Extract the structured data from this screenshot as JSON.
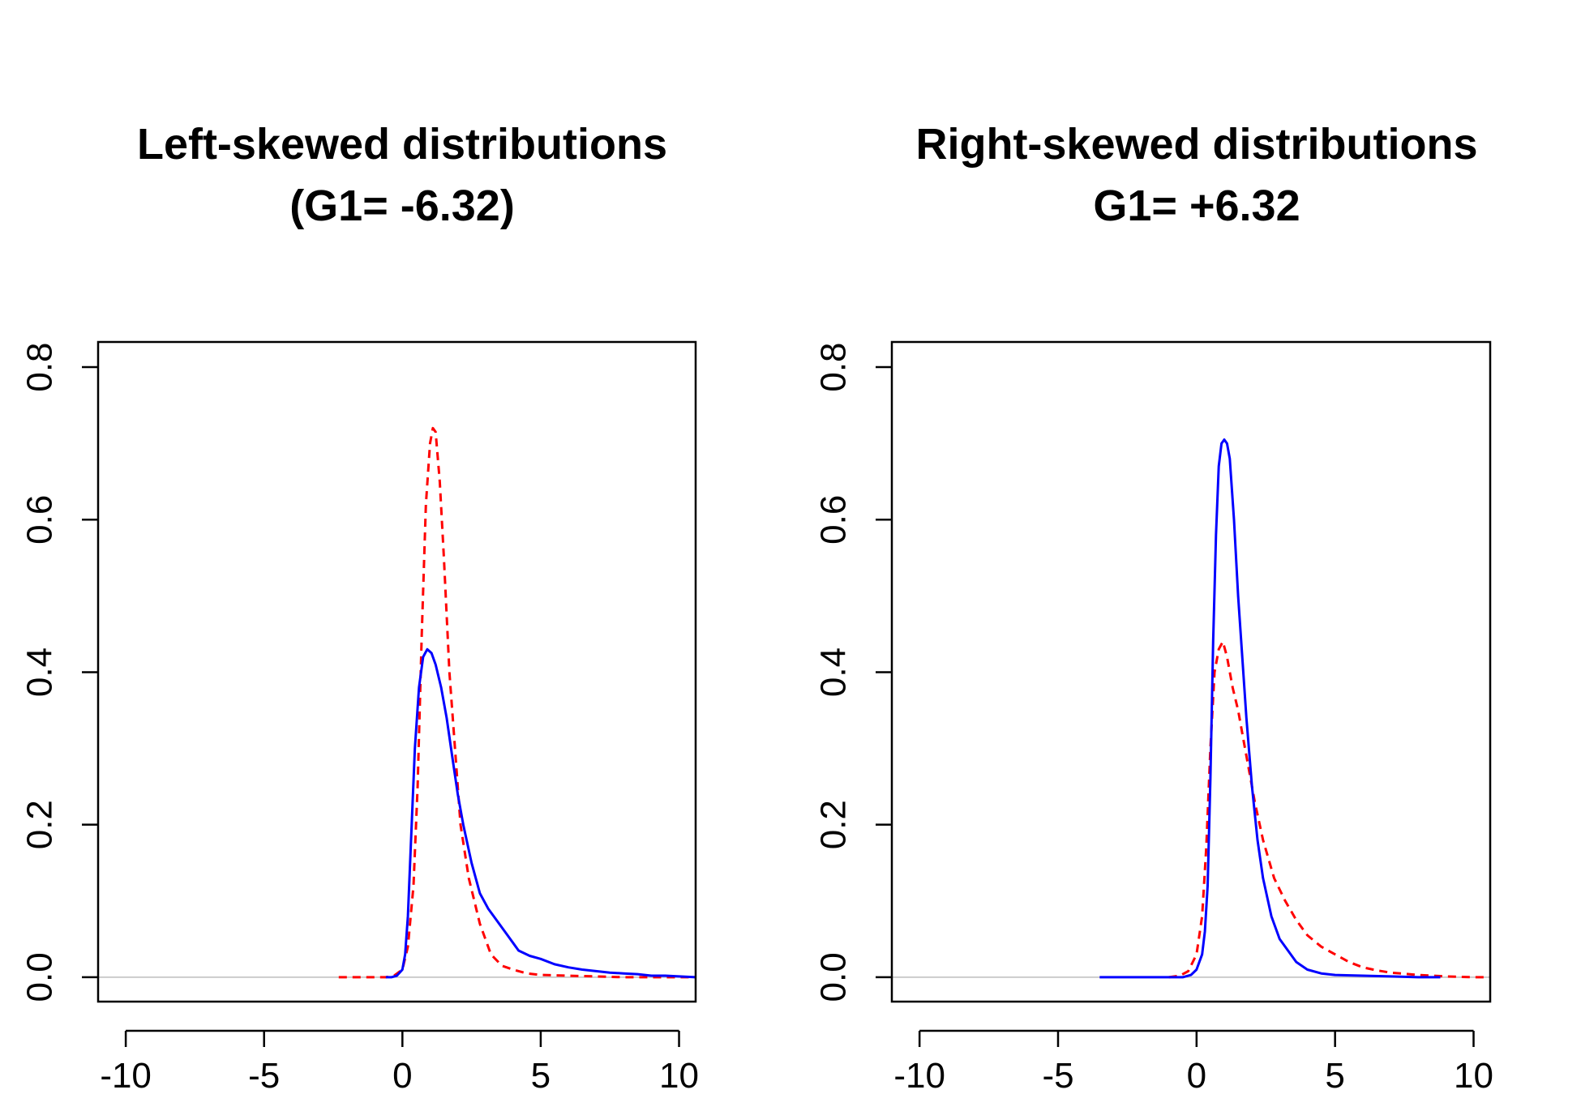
{
  "chart_data": [
    {
      "type": "line",
      "title_lines": [
        "Left-skewed distributions",
        "(G1= -6.32)"
      ],
      "xlabel": "",
      "ylabel": "",
      "xlim": [
        -11,
        10.6
      ],
      "ylim": [
        -0.032,
        0.833
      ],
      "x_ticks": [
        -10,
        -5,
        0,
        5,
        10
      ],
      "x_tick_labels": [
        "-10",
        "-5",
        "0",
        "5",
        "10"
      ],
      "y_ticks": [
        0.0,
        0.2,
        0.4,
        0.6,
        0.8
      ],
      "y_tick_labels": [
        "0.0",
        "0.2",
        "0.4",
        "0.6",
        "0.8"
      ],
      "grid": false,
      "legend": "none",
      "zero_line_color": "#bebebe",
      "series": [
        {
          "color": "#ff0000",
          "dash": "dashed",
          "x": [
            -2.3,
            -1.5,
            -1.0,
            -0.6,
            -0.3,
            0.0,
            0.2,
            0.4,
            0.55,
            0.7,
            0.85,
            1.0,
            1.1,
            1.2,
            1.35,
            1.5,
            1.7,
            1.9,
            2.1,
            2.4,
            2.8,
            3.2,
            3.6,
            4.0,
            4.5,
            5.0,
            6.0,
            7.0,
            8.0,
            9.0,
            10.6
          ],
          "y": [
            0.0,
            0.0,
            0.0,
            0.0,
            0.002,
            0.01,
            0.04,
            0.12,
            0.25,
            0.45,
            0.62,
            0.7,
            0.72,
            0.715,
            0.65,
            0.55,
            0.4,
            0.3,
            0.2,
            0.13,
            0.07,
            0.03,
            0.015,
            0.01,
            0.005,
            0.003,
            0.002,
            0.001,
            0.0,
            0.0,
            0.0
          ]
        },
        {
          "color": "#0000ff",
          "dash": "solid",
          "x": [
            -0.6,
            -0.4,
            -0.2,
            0.0,
            0.1,
            0.2,
            0.3,
            0.45,
            0.6,
            0.75,
            0.9,
            1.05,
            1.2,
            1.4,
            1.6,
            1.8,
            2.0,
            2.2,
            2.5,
            2.8,
            3.1,
            3.4,
            3.8,
            4.2,
            4.6,
            5.0,
            5.5,
            6.0,
            6.5,
            7.0,
            7.5,
            8.0,
            8.5,
            9.0,
            9.5,
            10.0,
            10.6
          ],
          "y": [
            0.0,
            0.0,
            0.002,
            0.01,
            0.03,
            0.08,
            0.17,
            0.3,
            0.38,
            0.42,
            0.43,
            0.425,
            0.41,
            0.38,
            0.34,
            0.29,
            0.24,
            0.2,
            0.15,
            0.11,
            0.09,
            0.075,
            0.055,
            0.035,
            0.028,
            0.024,
            0.017,
            0.013,
            0.01,
            0.008,
            0.006,
            0.005,
            0.004,
            0.002,
            0.002,
            0.001,
            0.0
          ]
        }
      ]
    },
    {
      "type": "line",
      "title_lines": [
        "Right-skewed distributions",
        "G1= +6.32"
      ],
      "xlabel": "",
      "ylabel": "",
      "xlim": [
        -11,
        10.6
      ],
      "ylim": [
        -0.032,
        0.833
      ],
      "x_ticks": [
        -10,
        -5,
        0,
        5,
        10
      ],
      "x_tick_labels": [
        "-10",
        "-5",
        "0",
        "5",
        "10"
      ],
      "y_ticks": [
        0.0,
        0.2,
        0.4,
        0.6,
        0.8
      ],
      "y_tick_labels": [
        "0.0",
        "0.2",
        "0.4",
        "0.6",
        "0.8"
      ],
      "grid": false,
      "legend": "none",
      "zero_line_color": "#bebebe",
      "series": [
        {
          "color": "#ff0000",
          "dash": "dashed",
          "x": [
            -1.0,
            -0.6,
            -0.3,
            0.0,
            0.2,
            0.35,
            0.5,
            0.65,
            0.8,
            0.95,
            1.1,
            1.3,
            1.5,
            1.7,
            1.9,
            2.1,
            2.4,
            2.8,
            3.2,
            3.6,
            4.0,
            4.5,
            5.0,
            5.5,
            6.0,
            6.5,
            7.0,
            8.0,
            9.0,
            10.0,
            10.6
          ],
          "y": [
            0.0,
            0.002,
            0.008,
            0.03,
            0.08,
            0.17,
            0.3,
            0.4,
            0.43,
            0.44,
            0.42,
            0.38,
            0.35,
            0.31,
            0.27,
            0.23,
            0.18,
            0.13,
            0.1,
            0.075,
            0.055,
            0.04,
            0.03,
            0.02,
            0.013,
            0.009,
            0.006,
            0.003,
            0.001,
            0.0,
            0.0
          ]
        },
        {
          "color": "#0000ff",
          "dash": "solid",
          "x": [
            -3.5,
            -2.0,
            -1.0,
            -0.5,
            -0.2,
            0.0,
            0.2,
            0.3,
            0.4,
            0.5,
            0.6,
            0.7,
            0.8,
            0.9,
            1.0,
            1.1,
            1.2,
            1.35,
            1.5,
            1.65,
            1.8,
            2.0,
            2.2,
            2.4,
            2.7,
            3.0,
            3.3,
            3.6,
            4.0,
            4.5,
            5.0,
            6.0,
            7.0,
            8.0,
            8.8
          ],
          "y": [
            0.0,
            0.0,
            0.0,
            0.0,
            0.003,
            0.01,
            0.03,
            0.06,
            0.12,
            0.26,
            0.44,
            0.58,
            0.67,
            0.7,
            0.705,
            0.7,
            0.68,
            0.6,
            0.5,
            0.42,
            0.34,
            0.25,
            0.18,
            0.13,
            0.08,
            0.05,
            0.035,
            0.02,
            0.01,
            0.005,
            0.003,
            0.002,
            0.001,
            0.0,
            0.0
          ]
        }
      ]
    }
  ]
}
